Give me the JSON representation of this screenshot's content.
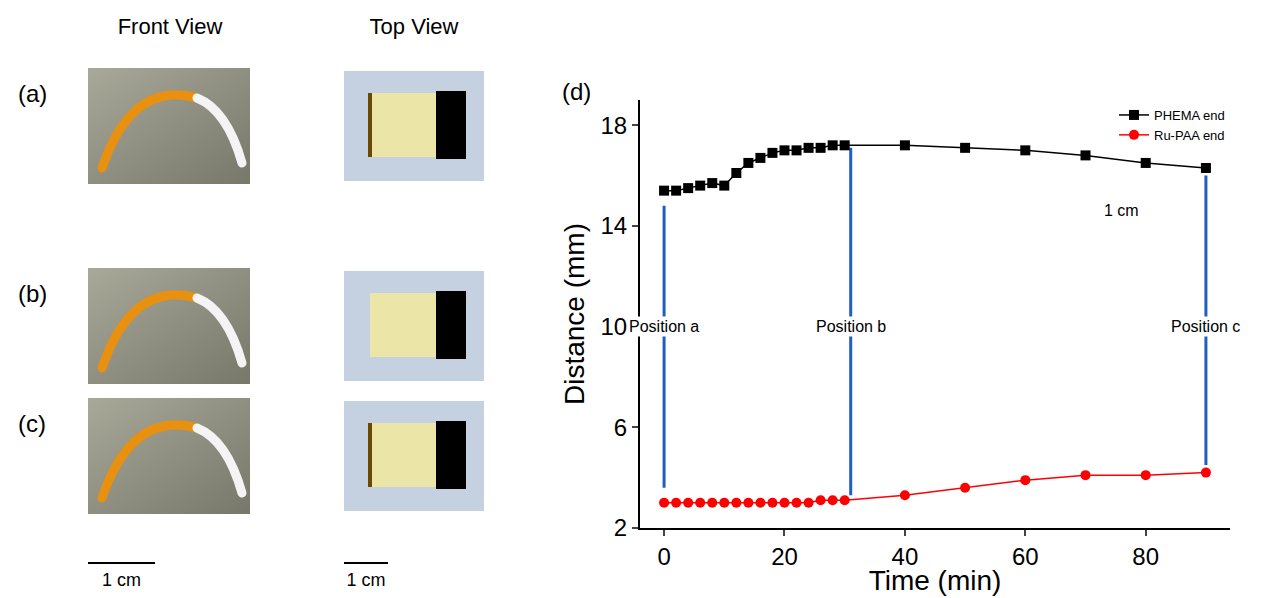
{
  "figure": {
    "columns": [
      "Front View",
      "Top View"
    ],
    "rows": [
      "(a)",
      "(b)",
      "(c)"
    ],
    "scale_bars": [
      "1 cm",
      "1 cm"
    ],
    "chart_label": "(d)"
  },
  "chart_data": {
    "type": "line",
    "x_label": "Time (min)",
    "y_label": "Distance (mm)",
    "x": [
      0,
      2,
      4,
      6,
      8,
      10,
      12,
      14,
      16,
      18,
      20,
      22,
      24,
      26,
      28,
      30,
      40,
      50,
      60,
      70,
      80,
      90
    ],
    "series": [
      {
        "name": "PHEMA end",
        "color": "#000000",
        "marker": "square",
        "line_style": "solid",
        "values": [
          15.4,
          15.4,
          15.5,
          15.6,
          15.7,
          15.6,
          16.1,
          16.5,
          16.7,
          16.9,
          17.0,
          17.0,
          17.1,
          17.1,
          17.2,
          17.2,
          17.2,
          17.1,
          17.0,
          16.8,
          16.5,
          16.3
        ]
      },
      {
        "name": "Ru-PAA end",
        "color": "#ff0000",
        "marker": "circle",
        "line_style": "solid",
        "values": [
          3.0,
          3.0,
          3.0,
          3.0,
          3.0,
          3.0,
          3.0,
          3.0,
          3.0,
          3.0,
          3.0,
          3.0,
          3.0,
          3.1,
          3.1,
          3.1,
          3.3,
          3.6,
          3.9,
          4.1,
          4.1,
          4.2
        ]
      }
    ],
    "xlim": [
      -4,
      94
    ],
    "xticks": [
      0,
      20,
      40,
      60,
      80
    ],
    "ylim": [
      2,
      19
    ],
    "yticks": [
      2,
      6,
      10,
      14,
      18
    ],
    "grid": false,
    "legend": "top right",
    "annotations": [
      {
        "text": "Position a",
        "x": 0,
        "y": 10,
        "line_y": [
          3.6,
          14.8
        ]
      },
      {
        "text": "Position b",
        "x": 31,
        "y": 10,
        "line_y": [
          3.3,
          17.1
        ]
      },
      {
        "text": "Position c",
        "x": 90,
        "y": 10,
        "line_y": [
          4.5,
          16.0
        ]
      },
      {
        "text": "1 cm",
        "x": 76,
        "y": 14.6
      }
    ]
  }
}
